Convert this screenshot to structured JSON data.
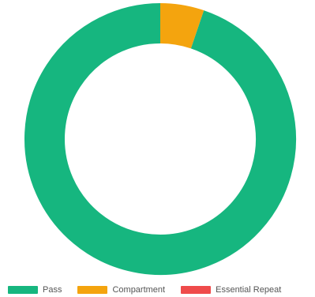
{
  "chart_data": {
    "type": "pie",
    "variant": "donut",
    "categories": [
      "Pass",
      "Compartment",
      "Essential Repeat"
    ],
    "values": [
      94.8,
      5.2,
      0
    ],
    "colors": [
      "#16b67f",
      "#f4a40e",
      "#ef4b4b"
    ],
    "legend_position": "bottom-left",
    "title": ""
  },
  "legend": {
    "items": [
      {
        "label": "Pass",
        "color": "#16b67f"
      },
      {
        "label": "Compartment",
        "color": "#f4a40e"
      },
      {
        "label": "Essential Repeat",
        "color": "#ef4b4b"
      }
    ]
  }
}
